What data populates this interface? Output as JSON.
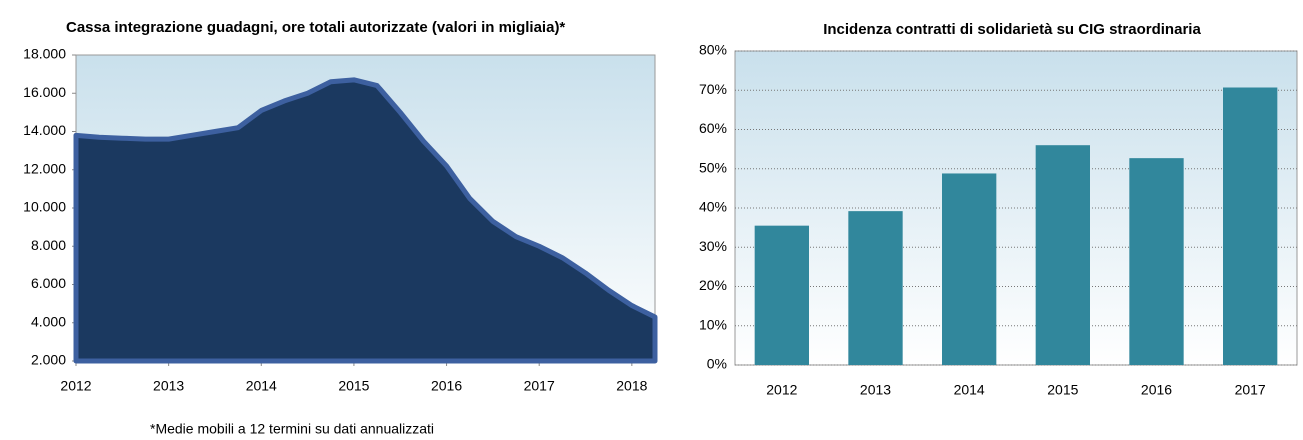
{
  "chart_data": [
    {
      "type": "area",
      "title": "Cassa integrazione guadagni, ore totali autorizzate (valori in migliaia)*",
      "note": "*Medie mobili a 12 termini su dati annualizzati",
      "x": [
        2012,
        2012.25,
        2012.5,
        2012.75,
        2013,
        2013.25,
        2013.5,
        2013.75,
        2014,
        2014.25,
        2014.5,
        2014.75,
        2015,
        2015.25,
        2015.5,
        2015.75,
        2016,
        2016.25,
        2016.5,
        2016.75,
        2017,
        2017.25,
        2017.5,
        2017.75,
        2018,
        2018.25
      ],
      "values": [
        13800,
        13700,
        13650,
        13600,
        13600,
        13800,
        14000,
        14200,
        15100,
        15600,
        16000,
        16600,
        16700,
        16400,
        15000,
        13500,
        12200,
        10500,
        9300,
        8500,
        8000,
        7400,
        6600,
        5700,
        4900,
        4300
      ],
      "color": "#1b3960",
      "line_color": "#3d60a0",
      "xlim": [
        2012,
        2018.25
      ],
      "xticks": [
        2012,
        2013,
        2014,
        2015,
        2016,
        2017,
        2018
      ],
      "ylim": [
        2000,
        18000
      ],
      "yticks": [
        {
          "value": 2000,
          "label": "2.000"
        },
        {
          "value": 4000,
          "label": "4.000"
        },
        {
          "value": 6000,
          "label": "6.000"
        },
        {
          "value": 8000,
          "label": "8.000"
        },
        {
          "value": 10000,
          "label": "10.000"
        },
        {
          "value": 12000,
          "label": "12.000"
        },
        {
          "value": 14000,
          "label": "14.000"
        },
        {
          "value": 16000,
          "label": "16.000"
        },
        {
          "value": 18000,
          "label": "18.000"
        }
      ]
    },
    {
      "type": "bar",
      "title": "Incidenza contratti di solidarietà su CIG straordinaria",
      "categories": [
        "2012",
        "2013",
        "2014",
        "2015",
        "2016",
        "2017"
      ],
      "values": [
        35.5,
        39.2,
        48.8,
        56,
        52.7,
        70.7
      ],
      "color": "#31879c",
      "ylim": [
        0,
        80
      ],
      "yticks": [
        {
          "value": 0,
          "label": "0%"
        },
        {
          "value": 10,
          "label": "10%"
        },
        {
          "value": 20,
          "label": "20%"
        },
        {
          "value": 30,
          "label": "30%"
        },
        {
          "value": 40,
          "label": "40%"
        },
        {
          "value": 50,
          "label": "50%"
        },
        {
          "value": 60,
          "label": "60%"
        },
        {
          "value": 70,
          "label": "70%"
        },
        {
          "value": 80,
          "label": "80%"
        }
      ],
      "grid": true
    }
  ]
}
